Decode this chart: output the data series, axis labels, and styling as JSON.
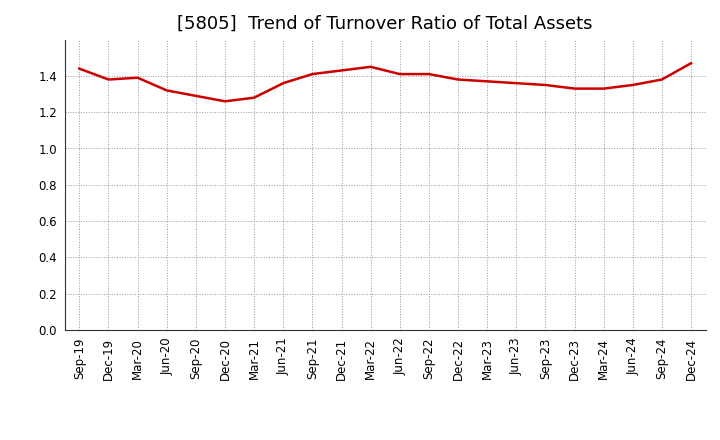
{
  "title": "[5805]  Trend of Turnover Ratio of Total Assets",
  "x_labels": [
    "Sep-19",
    "Dec-19",
    "Mar-20",
    "Jun-20",
    "Sep-20",
    "Dec-20",
    "Mar-21",
    "Jun-21",
    "Sep-21",
    "Dec-21",
    "Mar-22",
    "Jun-22",
    "Sep-22",
    "Dec-22",
    "Mar-23",
    "Jun-23",
    "Sep-23",
    "Dec-23",
    "Mar-24",
    "Jun-24",
    "Sep-24",
    "Dec-24"
  ],
  "y_values": [
    1.44,
    1.38,
    1.39,
    1.32,
    1.29,
    1.26,
    1.28,
    1.36,
    1.41,
    1.43,
    1.45,
    1.41,
    1.41,
    1.38,
    1.37,
    1.36,
    1.35,
    1.33,
    1.33,
    1.35,
    1.38,
    1.47
  ],
  "line_color": "#cc0000",
  "line_width": 1.8,
  "ylim": [
    0.0,
    1.6
  ],
  "yticks": [
    0.0,
    0.2,
    0.4,
    0.6,
    0.8,
    1.0,
    1.2,
    1.4
  ],
  "background_color": "#ffffff",
  "grid_color": "#999999",
  "title_fontsize": 13,
  "tick_fontsize": 8.5
}
